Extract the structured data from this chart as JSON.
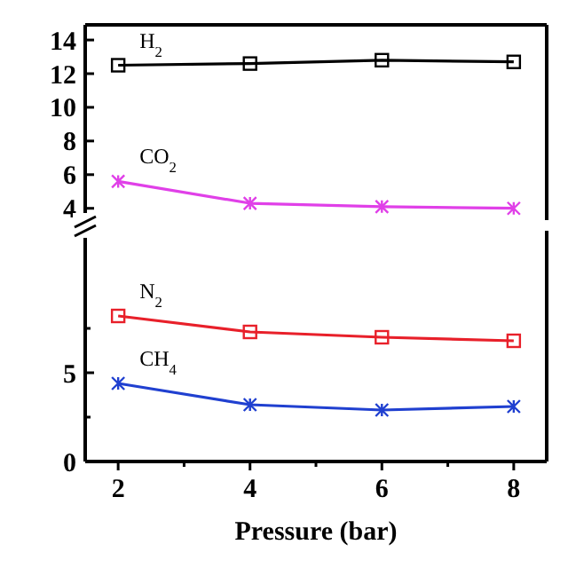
{
  "chart_data": [
    {
      "type": "line",
      "x": [
        2,
        4,
        6,
        8
      ],
      "xlim": [
        1.5,
        8.5
      ],
      "ylim": [
        3.3,
        14.9
      ],
      "yticks": [
        14,
        12,
        10,
        8,
        6,
        4
      ],
      "tick_labels": "y",
      "grid": false,
      "line_style": "solid",
      "series": [
        {
          "name": "H$_{2}$",
          "color": "#000000",
          "marker": "square",
          "values": [
            12.5,
            12.6,
            12.8,
            12.7
          ]
        },
        {
          "name": "CO$_{2}$",
          "color": "#e040e8",
          "marker": "cross",
          "values": [
            5.6,
            4.3,
            4.1,
            4.0
          ]
        }
      ]
    },
    {
      "type": "line",
      "x": [
        2,
        4,
        6,
        8
      ],
      "xlim": [
        1.5,
        8.5
      ],
      "xticks": [
        2,
        {
          "value": 3,
          "label": null
        },
        4,
        {
          "value": 5,
          "label": null
        },
        6,
        {
          "value": 7,
          "label": null
        },
        8
      ],
      "ylim": [
        0,
        13
      ],
      "yticks": [
        0,
        {
          "value": 2.5,
          "label": null
        },
        5,
        {
          "value": 7.5,
          "label": null
        }
      ],
      "xlabel": "Pressure (bar)",
      "grid": false,
      "line_style": "solid",
      "series": [
        {
          "name": "N$_{2}$",
          "color": "#e8202a",
          "marker": "square",
          "values": [
            8.2,
            7.3,
            7.0,
            6.8
          ]
        },
        {
          "name": "CH$_{4}$",
          "color": "#2040d0",
          "marker": "cross",
          "values": [
            4.4,
            3.2,
            2.9,
            3.1
          ]
        }
      ]
    }
  ]
}
